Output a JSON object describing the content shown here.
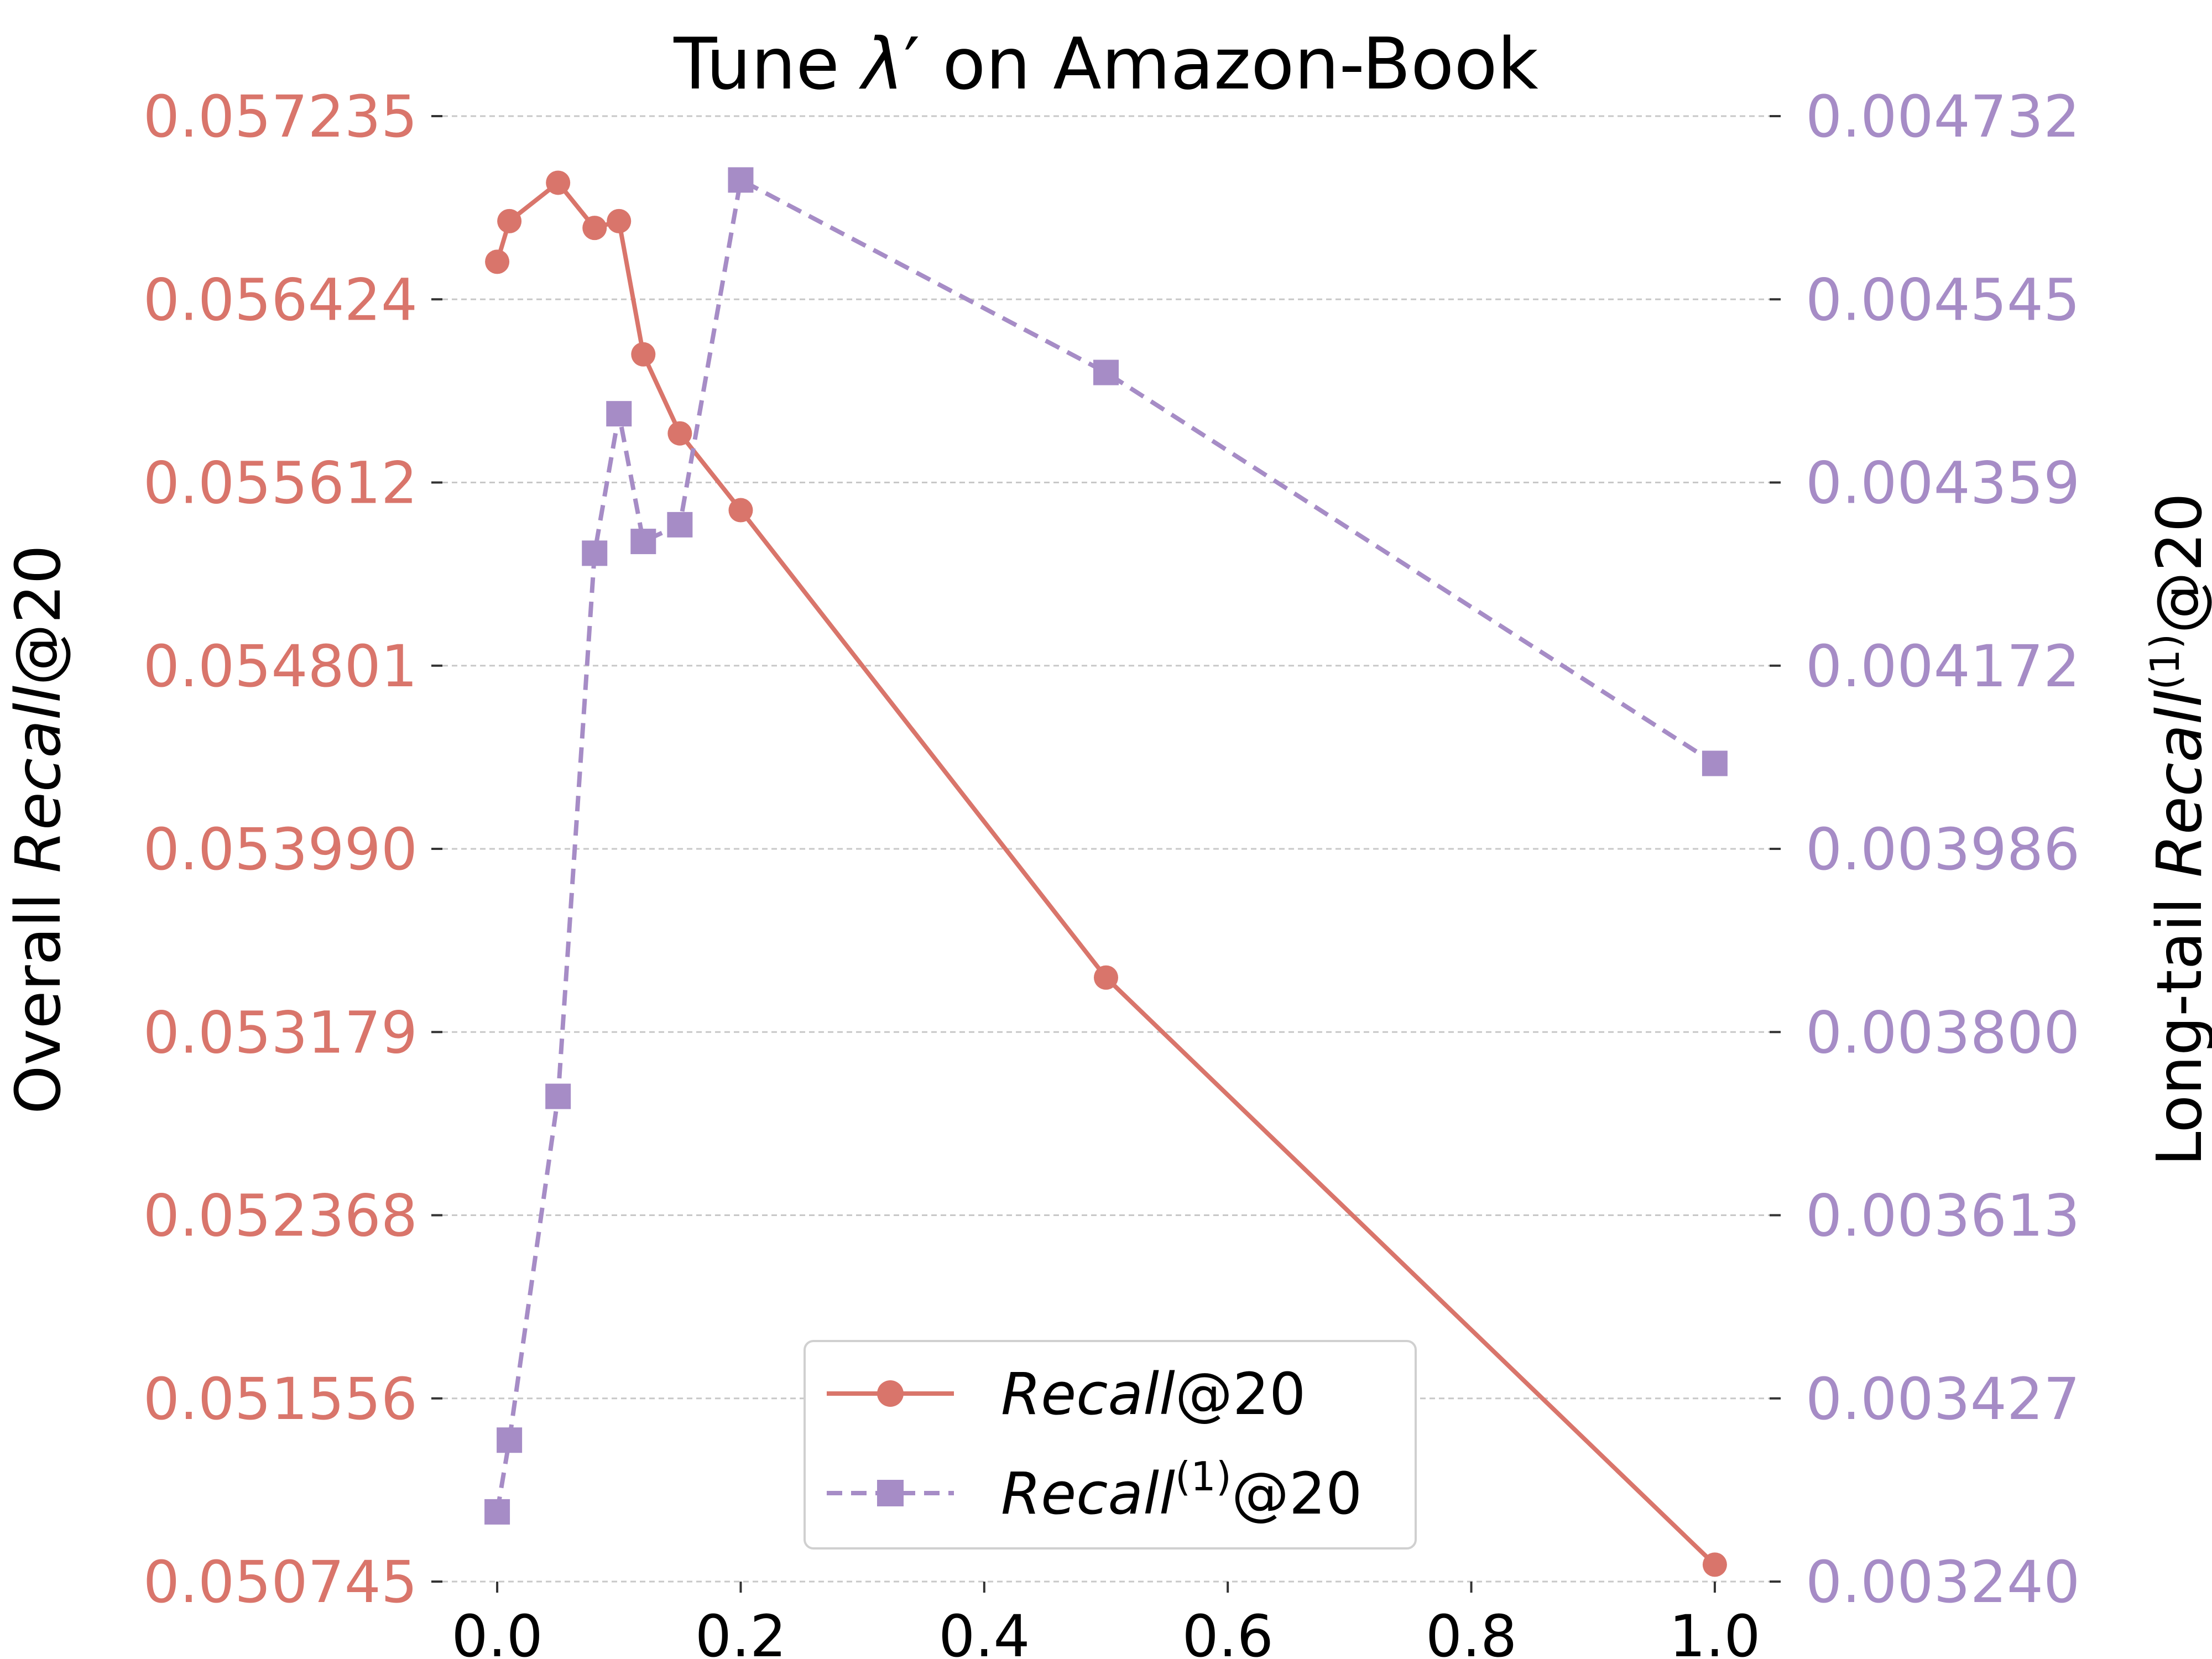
{
  "chart_data": {
    "type": "line",
    "title": "Tune λ′ on Amazon-Book",
    "title_parts": {
      "before": "Tune ",
      "symbol": "λ",
      "prime": "′",
      "after": " on Amazon-Book"
    },
    "ylabel_left": {
      "plain": "Overall",
      "italic": "Recall",
      "suffix": "@20"
    },
    "ylabel_right": {
      "plain": "Long-tail",
      "italic": "Recall",
      "superscript": "(1)",
      "suffix": "@20"
    },
    "x_ticks": [
      "0.0",
      "0.2",
      "0.4",
      "0.6",
      "0.8",
      "1.0"
    ],
    "xlim": [
      -0.045,
      1.045
    ],
    "y_left_ticks": [
      "0.050745",
      "0.051556",
      "0.052368",
      "0.053179",
      "0.053990",
      "0.054801",
      "0.055612",
      "0.056424",
      "0.057235"
    ],
    "y_left_lim": [
      0.050745,
      0.057235
    ],
    "y_right_ticks": [
      "0.003240",
      "0.003427",
      "0.003613",
      "0.003800",
      "0.003986",
      "0.004172",
      "0.004359",
      "0.004545",
      "0.004732"
    ],
    "y_right_lim": [
      0.00324,
      0.004732
    ],
    "grid": "horizontal-dashed",
    "legend_position": "bottom-center",
    "series": [
      {
        "name": "Recall@20",
        "legend": {
          "italic": "Recall",
          "superscript": "",
          "suffix": "@20"
        },
        "axis": "left",
        "color": "#d9756b",
        "marker": "circle",
        "linestyle": "solid",
        "x": [
          0.0,
          0.01,
          0.05,
          0.08,
          0.1,
          0.12,
          0.15,
          0.2,
          0.5,
          1.0
        ],
        "values": [
          0.05659,
          0.05677,
          0.05694,
          0.05674,
          0.05677,
          0.05618,
          0.05583,
          0.05549,
          0.05342,
          0.05082
        ]
      },
      {
        "name": "Recall(1)@20",
        "legend": {
          "italic": "Recall",
          "superscript": "(1)",
          "suffix": "@20"
        },
        "axis": "right",
        "color": "#a68cc6",
        "marker": "square",
        "linestyle": "dashed",
        "x": [
          0.0,
          0.01,
          0.05,
          0.08,
          0.1,
          0.12,
          0.15,
          0.2,
          0.5,
          1.0
        ],
        "values": [
          0.003311,
          0.003384,
          0.003734,
          0.004287,
          0.004429,
          0.004299,
          0.004316,
          0.004667,
          0.004471,
          0.004073
        ]
      }
    ]
  },
  "colors": {
    "left_axis": "#d9756b",
    "right_axis": "#a68cc6",
    "grid": "#c8c8c8",
    "text": "#000000"
  }
}
